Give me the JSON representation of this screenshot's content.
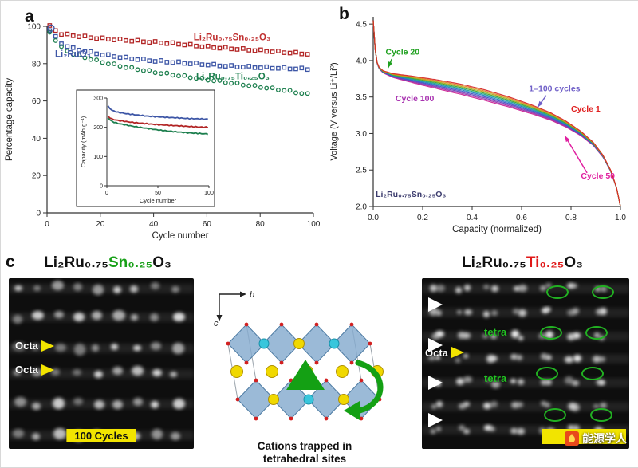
{
  "panels": {
    "a_label": "a",
    "b_label": "b",
    "c_label": "c"
  },
  "chart_data": [
    {
      "id": "a",
      "type": "scatter",
      "xlabel": "Cycle number",
      "ylabel": "Percentage capacity",
      "xlim": [
        0,
        100
      ],
      "ylim": [
        0,
        100
      ],
      "xticks": [
        0,
        20,
        40,
        60,
        80,
        100
      ],
      "yticks": [
        0,
        20,
        40,
        60,
        80,
        100
      ],
      "series": [
        {
          "name": "Li2Ru0.75Sn0.25O3",
          "color": "#b22525",
          "marker": "square",
          "points": [
            [
              1,
              100
            ],
            [
              5,
              96
            ],
            [
              10,
              95
            ],
            [
              20,
              93.5
            ],
            [
              30,
              92.5
            ],
            [
              40,
              91.5
            ],
            [
              50,
              90.5
            ],
            [
              60,
              89
            ],
            [
              70,
              88
            ],
            [
              80,
              87
            ],
            [
              90,
              86
            ],
            [
              100,
              85
            ]
          ]
        },
        {
          "name": "Li2RuO3",
          "color": "#3d56a6",
          "marker": "square",
          "points": [
            [
              1,
              98
            ],
            [
              5,
              91
            ],
            [
              10,
              88
            ],
            [
              20,
              85
            ],
            [
              30,
              83
            ],
            [
              40,
              81.5
            ],
            [
              50,
              80.5
            ],
            [
              60,
              79.5
            ],
            [
              70,
              78.5
            ],
            [
              80,
              78
            ],
            [
              90,
              77.5
            ],
            [
              100,
              77
            ]
          ]
        },
        {
          "name": "Li2Ru0.75Ti0.25O3",
          "color": "#1d7f4e",
          "marker": "circle",
          "points": [
            [
              1,
              97
            ],
            [
              5,
              89
            ],
            [
              10,
              85
            ],
            [
              20,
              81
            ],
            [
              30,
              78
            ],
            [
              40,
              75.5
            ],
            [
              50,
              73.5
            ],
            [
              60,
              71.5
            ],
            [
              70,
              69.5
            ],
            [
              80,
              67.5
            ],
            [
              90,
              65.5
            ],
            [
              100,
              63
            ]
          ]
        }
      ],
      "annotations": [
        {
          "text": "Li₂Ru₀.₇₅Sn₀.₂₅O₃",
          "color": "#c03030",
          "x": 55,
          "y": 92.5
        },
        {
          "text": "Li₂RuO₃",
          "color": "#3d56a6",
          "x": 3,
          "y": 83.5
        },
        {
          "text": "Li₂Ru₀.₇₅Ti₀.₂₅O₃",
          "color": "#1d7f4e",
          "x": 56,
          "y": 71.5
        }
      ],
      "inset": {
        "xlabel": "Cycle number",
        "ylabel": "Capacity (mAh g⁻¹)",
        "xlim": [
          0,
          100
        ],
        "ylim": [
          0,
          300
        ],
        "xticks": [
          0,
          50,
          100
        ],
        "yticks": [
          0,
          100,
          200,
          300
        ],
        "series": [
          {
            "name": "Li2RuO3",
            "color": "#3d56a6",
            "points": [
              [
                1,
                272
              ],
              [
                5,
                258
              ],
              [
                10,
                252
              ],
              [
                20,
                246
              ],
              [
                30,
                242
              ],
              [
                40,
                238
              ],
              [
                50,
                236
              ],
              [
                60,
                234
              ],
              [
                70,
                232
              ],
              [
                80,
                230
              ],
              [
                90,
                229
              ],
              [
                100,
                228
              ]
            ]
          },
          {
            "name": "Li2Ru0.75Sn0.25O3",
            "color": "#b22525",
            "points": [
              [
                1,
                238
              ],
              [
                5,
                228
              ],
              [
                10,
                224
              ],
              [
                20,
                219
              ],
              [
                30,
                215
              ],
              [
                40,
                212
              ],
              [
                50,
                209
              ],
              [
                60,
                207
              ],
              [
                70,
                205
              ],
              [
                80,
                203
              ],
              [
                90,
                201
              ],
              [
                100,
                200
              ]
            ]
          },
          {
            "name": "Li2Ru0.75Ti0.25O3",
            "color": "#1d7f4e",
            "points": [
              [
                1,
                232
              ],
              [
                5,
                220
              ],
              [
                10,
                214
              ],
              [
                20,
                207
              ],
              [
                30,
                201
              ],
              [
                40,
                196
              ],
              [
                50,
                191
              ],
              [
                60,
                187
              ],
              [
                70,
                184
              ],
              [
                80,
                181
              ],
              [
                90,
                179
              ],
              [
                100,
                177
              ]
            ]
          }
        ]
      }
    },
    {
      "id": "b",
      "type": "line",
      "xlabel": "Capacity (normalized)",
      "ylabel": "Voltage (V versus Li⁺/Li⁰)",
      "xlim": [
        0,
        1.0
      ],
      "ylim": [
        2.0,
        4.6
      ],
      "xticks": [
        0,
        0.2,
        0.4,
        0.6,
        0.8,
        1.0
      ],
      "yticks": [
        2.0,
        2.5,
        3.0,
        3.5,
        4.0,
        4.5
      ],
      "cycles_shown": "1-100 cycles",
      "colors": [
        "#d62728",
        "#e08020",
        "#b0a818",
        "#3fa32c",
        "#19a08c",
        "#2080c0",
        "#3b52c4",
        "#7040b8",
        "#9c30a8",
        "#cc2394"
      ],
      "base_curve": [
        [
          0,
          4.55
        ],
        [
          0.004,
          4.35
        ],
        [
          0.01,
          4.05
        ],
        [
          0.02,
          3.92
        ],
        [
          0.04,
          3.86
        ],
        [
          0.08,
          3.82
        ],
        [
          0.15,
          3.79
        ],
        [
          0.25,
          3.74
        ],
        [
          0.35,
          3.68
        ],
        [
          0.45,
          3.6
        ],
        [
          0.55,
          3.5
        ],
        [
          0.65,
          3.38
        ],
        [
          0.72,
          3.28
        ],
        [
          0.78,
          3.17
        ],
        [
          0.84,
          3.03
        ],
        [
          0.89,
          2.88
        ],
        [
          0.93,
          2.7
        ],
        [
          0.96,
          2.5
        ],
        [
          0.985,
          2.25
        ],
        [
          1,
          2.0
        ]
      ],
      "annotations": [
        {
          "text": "Cycle 20",
          "color": "#1fa01f",
          "x": 0.05,
          "y": 4.08
        },
        {
          "text": "Cycle 100",
          "color": "#a832b0",
          "x": 0.09,
          "y": 3.44
        },
        {
          "text": "1–100 cycles",
          "color": "#7060c8",
          "x": 0.63,
          "y": 3.58
        },
        {
          "text": "Cycle 1",
          "color": "#e02020",
          "x": 0.8,
          "y": 3.3
        },
        {
          "text": "Cycle 50",
          "color": "#e020a0",
          "x": 0.84,
          "y": 2.38
        },
        {
          "text": "Li₂Ru₀.₇₅Sn₀.₂₅O₃",
          "color": "#3b3b6d",
          "x": 0.01,
          "y": 2.13
        }
      ],
      "arrows": [
        {
          "x1": 0.865,
          "y1": 2.46,
          "x2": 0.775,
          "y2": 2.97,
          "color": "#e020a0"
        },
        {
          "x1": 0.7,
          "y1": 3.52,
          "x2": 0.665,
          "y2": 3.36,
          "color": "#7060c8"
        },
        {
          "x1": 0.075,
          "y1": 4.02,
          "x2": 0.06,
          "y2": 3.9,
          "color": "#1fa01f"
        }
      ]
    }
  ],
  "panel_c": {
    "left": {
      "title_prefix": "Li₂Ru₀.₇₅",
      "title_element": "Sn₀.₂₅",
      "title_suffix": "O₃",
      "element_color": "#18a018",
      "octa_labels": [
        "Octa",
        "Octa"
      ],
      "badge": "100 Cycles"
    },
    "middle": {
      "axis_b": "b",
      "axis_c": "c",
      "caption_line1": "Cations trapped in",
      "caption_line2": "tetrahedral sites"
    },
    "right": {
      "title_prefix": "Li₂Ru₀.₇₅",
      "title_element": "Ti₀.₂₅",
      "title_suffix": "O₃",
      "element_color": "#e01818",
      "octa_label": "Octa",
      "tetra_labels": [
        "tetra",
        "tetra"
      ],
      "badge": "",
      "watermark": "能源学人",
      "ellipses": [
        [
          60,
          4
        ],
        [
          82,
          4
        ],
        [
          57,
          28
        ],
        [
          79,
          28
        ],
        [
          55,
          52
        ],
        [
          77,
          52
        ],
        [
          59,
          76
        ],
        [
          81,
          76
        ]
      ],
      "arrowheads": [
        [
          3,
          11
        ],
        [
          3,
          35
        ],
        [
          3,
          57
        ],
        [
          3,
          79
        ]
      ]
    }
  }
}
